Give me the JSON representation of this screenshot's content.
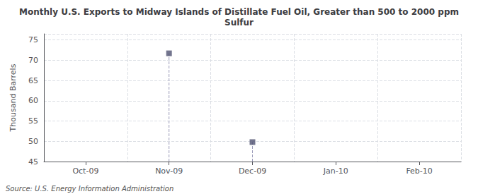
{
  "chart_data": {
    "type": "scatter",
    "title": "Monthly U.S. Exports to Midway Islands of Distillate Fuel Oil, Greater than 500 to 2000 ppm\nSulfur",
    "ylabel": "Thousand Barrels",
    "annotation": "Source: U.S. Energy Information Administration",
    "categories": [
      "Oct-09",
      "Nov-09",
      "Dec-09",
      "Jan-10",
      "Feb-10"
    ],
    "values": [
      null,
      71.7,
      49.8,
      null,
      null
    ],
    "marker": "square",
    "ylim": [
      45,
      76.5
    ],
    "yticks": [
      45,
      50,
      55,
      60,
      65,
      70,
      75
    ],
    "grid": true
  }
}
